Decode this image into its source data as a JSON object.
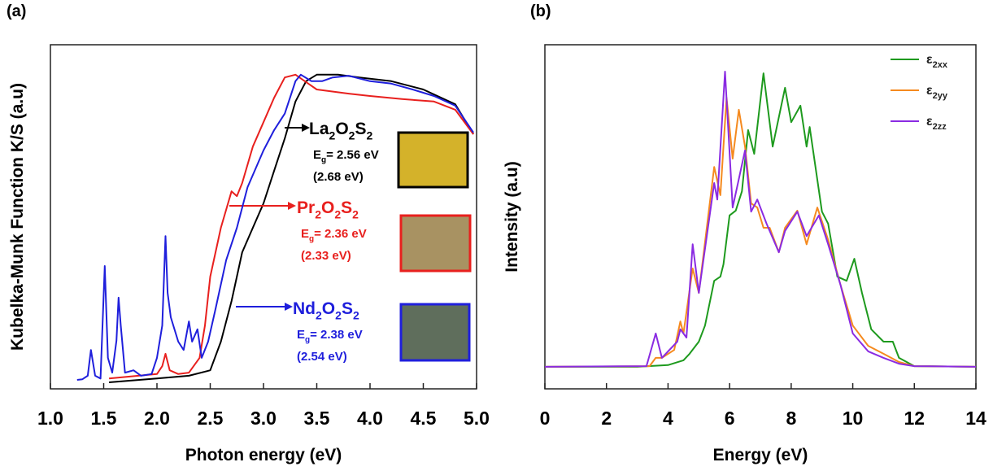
{
  "chart_data": [
    {
      "type": "line",
      "panel_label": "(a)",
      "x_label": "Photon energy (eV)",
      "y_label": "Kubelka-Munk Function K/S (a.u)",
      "xlim": [
        1.0,
        5.0
      ],
      "ylim": [
        0,
        100
      ],
      "xticks": [
        {
          "value": 1.0,
          "label": "1.0"
        },
        1.5,
        {
          "value": 2.0,
          "label": "2.0"
        },
        2.5,
        {
          "value": 3.0,
          "label": "3.0"
        },
        3.5,
        {
          "value": 4.0,
          "label": "4.0"
        },
        4.5,
        {
          "value": 5.0,
          "label": "5.0"
        }
      ],
      "series": [
        {
          "name": "La2O2S2",
          "color": "#000000",
          "band_gap": "Eg= 2.56 eV",
          "band_gap_alt": "(2.68 eV)",
          "swatch": "#d4b22a",
          "x": [
            1.55,
            2.0,
            2.3,
            2.5,
            2.6,
            2.7,
            2.8,
            2.9,
            3.0,
            3.1,
            3.2,
            3.3,
            3.4,
            3.5,
            3.7,
            3.9,
            4.2,
            4.5,
            4.8,
            4.97
          ],
          "values": [
            1.9,
            3,
            3.8,
            5.4,
            13.7,
            25.5,
            39.7,
            46.8,
            53.9,
            63.4,
            72.8,
            83.5,
            89.4,
            91.3,
            91.3,
            90.5,
            89.4,
            87,
            82.7,
            74
          ]
        },
        {
          "name": "Pr2O2S2",
          "color": "#e8201e",
          "band_gap": "Eg= 2.36 eV",
          "band_gap_alt": "(2.33 eV)",
          "swatch": "#a89262",
          "x": [
            1.55,
            2.0,
            2.05,
            2.08,
            2.12,
            2.2,
            2.3,
            2.4,
            2.45,
            2.5,
            2.6,
            2.7,
            2.75,
            2.8,
            2.9,
            3.0,
            3.1,
            3.2,
            3.3,
            3.5,
            3.8,
            4.0,
            4.3,
            4.6,
            4.8,
            4.97
          ],
          "values": [
            3,
            4.3,
            6.6,
            10.2,
            5.4,
            4.3,
            4.7,
            9,
            18.4,
            32.6,
            46.8,
            57.4,
            56,
            59.8,
            70.4,
            77.5,
            84.6,
            90.5,
            91.3,
            87,
            85.8,
            85.1,
            84.2,
            83.5,
            81.1,
            74
          ]
        },
        {
          "name": "Nd2O2S2",
          "color": "#1f1fdc",
          "band_gap": "Eg= 2.38 eV",
          "band_gap_alt": "(2.54 eV)",
          "swatch": "#5f6e5c",
          "x": [
            1.25,
            1.3,
            1.35,
            1.38,
            1.42,
            1.47,
            1.51,
            1.54,
            1.58,
            1.62,
            1.64,
            1.66,
            1.7,
            1.78,
            1.85,
            1.95,
            2.0,
            2.05,
            2.08,
            2.1,
            2.13,
            2.2,
            2.25,
            2.3,
            2.33,
            2.38,
            2.42,
            2.48,
            2.55,
            2.65,
            2.75,
            2.85,
            3.0,
            3.1,
            3.2,
            3.3,
            3.35,
            3.45,
            3.55,
            3.65,
            3.8,
            4.0,
            4.2,
            4.4,
            4.6,
            4.8,
            4.97
          ],
          "values": [
            2.6,
            2.8,
            3.8,
            11.3,
            3.8,
            3,
            35.7,
            9,
            4.7,
            14,
            26.5,
            18.4,
            4.7,
            5.4,
            3.8,
            4.3,
            9,
            18.4,
            44.4,
            27.9,
            20.8,
            13.7,
            11.3,
            19.6,
            13.7,
            17.3,
            9,
            13.7,
            23.2,
            37.4,
            46.8,
            58.6,
            69.3,
            75.2,
            80,
            89.4,
            91.3,
            89.4,
            89.4,
            90.5,
            91,
            89.4,
            88.7,
            87,
            85.1,
            82.3,
            74.5
          ]
        }
      ]
    },
    {
      "type": "line",
      "panel_label": "(b)",
      "x_label": "Energy (eV)",
      "y_label": "Intensity (a.u)",
      "xlim": [
        0,
        14
      ],
      "ylim": [
        0,
        100
      ],
      "xticks": [
        0,
        2,
        4,
        6,
        8,
        10,
        12,
        14
      ],
      "legend": "upper right",
      "series": [
        {
          "name": "ε2xx",
          "color": "#1e9a1e",
          "x": [
            0,
            3,
            4,
            4.5,
            4.7,
            5.0,
            5.2,
            5.5,
            5.7,
            5.8,
            6.0,
            6.2,
            6.4,
            6.6,
            6.8,
            7.1,
            7.4,
            7.8,
            8.0,
            8.3,
            8.5,
            8.6,
            9.0,
            9.2,
            9.5,
            9.8,
            10.05,
            10.3,
            10.6,
            11.0,
            11.3,
            11.5,
            12,
            14
          ],
          "values": [
            6.4,
            6.4,
            6.9,
            8.3,
            10.2,
            13.7,
            18.4,
            31.4,
            32.6,
            36.2,
            50.4,
            51.8,
            57.4,
            75.2,
            68.3,
            91.7,
            70.4,
            87.5,
            77.5,
            82.3,
            70.4,
            76.1,
            51.5,
            48,
            32.6,
            31.4,
            37.8,
            27.9,
            17.3,
            13.7,
            13.7,
            9,
            6.6,
            6.4
          ]
        },
        {
          "name": "ε2yy",
          "color": "#f58a1f",
          "x": [
            0,
            3.4,
            3.6,
            3.8,
            4.2,
            4.4,
            4.5,
            4.8,
            5.0,
            5.5,
            5.7,
            5.9,
            6.1,
            6.3,
            6.5,
            6.7,
            6.9,
            7.1,
            7.3,
            7.6,
            7.8,
            8.2,
            8.5,
            8.85,
            9.2,
            9.6,
            10,
            10.5,
            11,
            11.5,
            12,
            14
          ],
          "values": [
            6.4,
            6.6,
            9,
            9,
            11.3,
            19.6,
            16.1,
            35,
            27.9,
            64.5,
            56.3,
            84.6,
            66.9,
            81.1,
            70.4,
            53.9,
            52.7,
            46.8,
            46.8,
            39.7,
            46.8,
            51.8,
            42,
            52.7,
            43.3,
            30.3,
            18.4,
            12.5,
            10.2,
            7.8,
            6.6,
            6.4
          ]
        },
        {
          "name": "ε2zz",
          "color": "#8a2be2",
          "x": [
            0,
            3.3,
            3.6,
            3.8,
            4.3,
            4.4,
            4.6,
            4.8,
            5.0,
            5.5,
            5.6,
            5.85,
            6.1,
            6.5,
            6.7,
            6.9,
            7.2,
            7.6,
            7.8,
            8.2,
            8.5,
            8.9,
            9.2,
            9.6,
            10,
            10.5,
            11,
            11.5,
            12,
            14
          ],
          "values": [
            6.4,
            6.6,
            16.1,
            9,
            13.7,
            17.3,
            14.9,
            42,
            27.9,
            59.8,
            55,
            92.2,
            52.7,
            69.3,
            51.5,
            55,
            48,
            39.7,
            45.9,
            51.5,
            44.4,
            50.4,
            42,
            30.3,
            16.1,
            10.9,
            9,
            7.3,
            6.6,
            6.4
          ]
        }
      ]
    }
  ]
}
